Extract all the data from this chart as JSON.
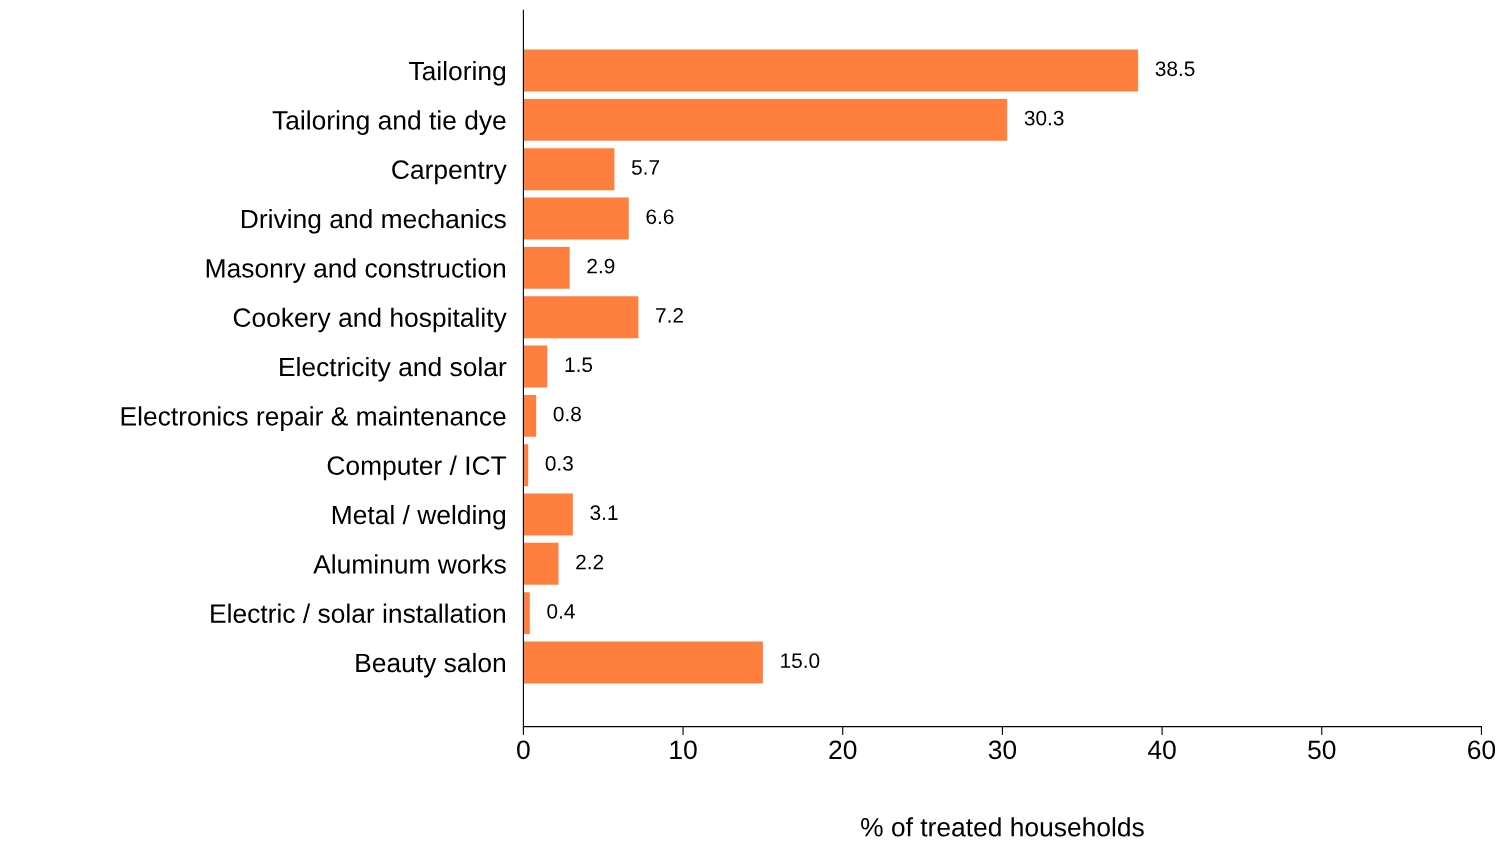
{
  "chart_data": {
    "type": "bar",
    "orientation": "horizontal",
    "xlabel": "% of treated households",
    "categories": [
      "Tailoring",
      "Tailoring and tie dye",
      "Carpentry",
      "Driving and mechanics",
      "Masonry and construction",
      "Cookery and hospitality",
      "Electricity and solar",
      "Electronics repair & maintenance",
      "Computer / ICT",
      "Metal / welding",
      "Aluminum works",
      "Electric / solar installation",
      "Beauty salon"
    ],
    "values": [
      38.5,
      30.3,
      5.7,
      6.6,
      2.9,
      7.2,
      1.5,
      0.8,
      0.3,
      3.1,
      2.2,
      0.4,
      15.0
    ],
    "value_labels": [
      "38.5",
      "30.3",
      "5.7",
      "6.6",
      "2.9",
      "7.2",
      "1.5",
      "0.8",
      "0.3",
      "3.1",
      "2.2",
      "0.4",
      "15.0"
    ],
    "color": "#ff7f3f",
    "xlim": [
      0,
      60
    ],
    "xticks": [
      0,
      10,
      20,
      30,
      40,
      50,
      60
    ],
    "grid": false,
    "legend": false
  }
}
